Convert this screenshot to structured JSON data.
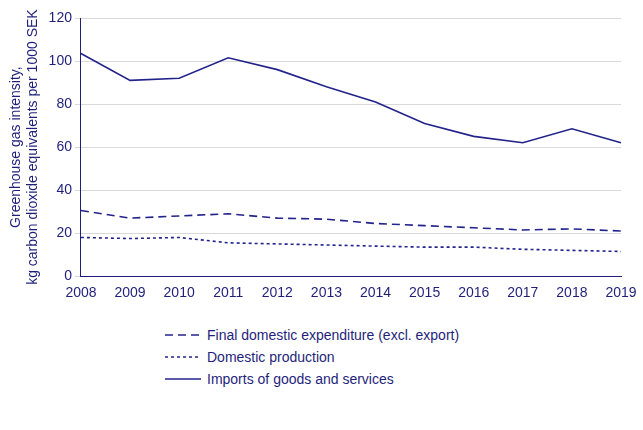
{
  "chart_data": {
    "type": "line",
    "y_label": [
      "Greenhouse gas intensity,",
      "kg carbon dioxide equivalents per 1000 SEK"
    ],
    "categories": [
      "2008",
      "2009",
      "2010",
      "2011",
      "2012",
      "2013",
      "2014",
      "2015",
      "2016",
      "2017",
      "2018",
      "2019"
    ],
    "series": [
      {
        "name": "Final domestic expenditure (excl. export)",
        "color": "#23238c",
        "line_style": "dashed",
        "values": [
          30.5,
          27,
          28,
          29,
          27,
          26.5,
          24.5,
          23.5,
          22.5,
          21.5,
          22,
          21
        ]
      },
      {
        "name": "Domestic production",
        "color": "#23238c",
        "line_style": "dotted",
        "values": [
          18,
          17.5,
          18,
          15.5,
          15,
          14.5,
          14,
          13.5,
          13.5,
          12.5,
          12,
          11.5
        ]
      },
      {
        "name": "Imports of goods and services",
        "color": "#23238c",
        "line_style": "solid",
        "values": [
          103.5,
          91,
          92,
          101.5,
          96,
          88,
          81,
          71,
          65,
          62,
          68.5,
          62
        ]
      }
    ],
    "ylim": [
      0,
      120
    ],
    "yticks": [
      0,
      20,
      40,
      60,
      80,
      100,
      120
    ],
    "grid": true,
    "legend": "bottom"
  }
}
